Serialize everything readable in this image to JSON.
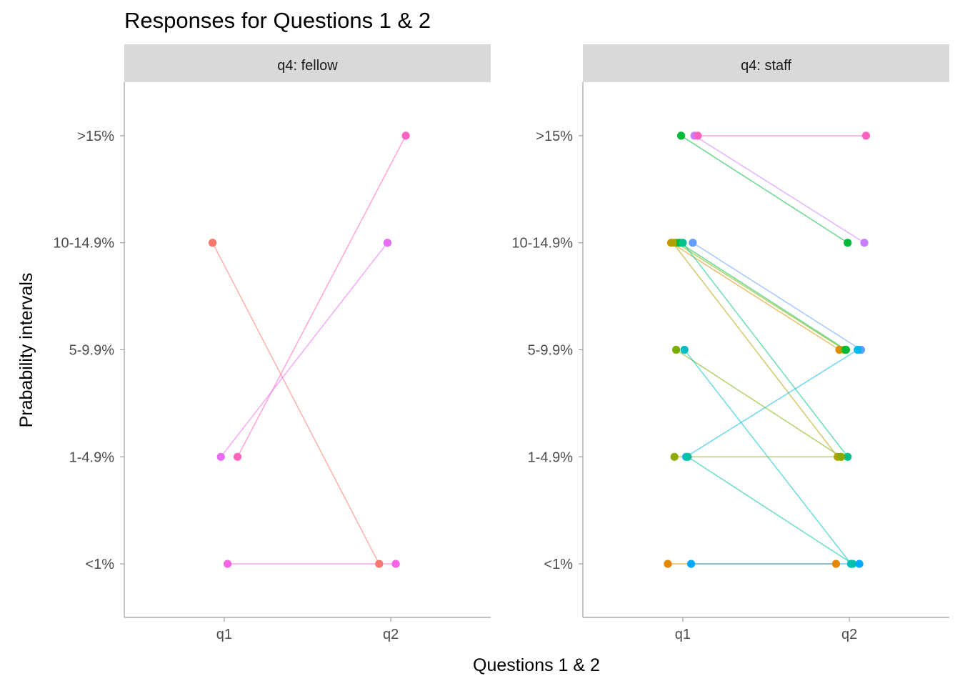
{
  "chart_data": {
    "type": "line",
    "title": "Responses for Questions 1 & 2",
    "xlabel": "Questions 1 & 2",
    "ylabel": "Prabability intervals",
    "x_categories": [
      "q1",
      "q2"
    ],
    "y_categories": [
      "<1%",
      "1-4.9%",
      "5-9.9%",
      "10-14.9%",
      ">15%"
    ],
    "grid": false,
    "legend": "none",
    "facet_label": "q4",
    "panels": [
      {
        "name": "q4: fellow",
        "series": [
          {
            "color": "#F8766D",
            "x": [
              0.93,
              1.93
            ],
            "values": [
              "10-14.9%",
              "<1%"
            ]
          },
          {
            "color": "#FF62BC",
            "x": [
              1.08,
              2.09
            ],
            "values": [
              "1-4.9%",
              ">15%"
            ]
          },
          {
            "color": "#E76BF3",
            "x": [
              0.98,
              1.98
            ],
            "values": [
              "1-4.9%",
              "10-14.9%"
            ]
          },
          {
            "color": "#F564E3",
            "x": [
              1.02,
              2.03
            ],
            "values": [
              "<1%",
              "<1%"
            ]
          }
        ]
      },
      {
        "name": "q4: staff",
        "series": [
          {
            "color": "#00BA38",
            "x": [
              0.99,
              1.99
            ],
            "values": [
              ">15%",
              "10-14.9%"
            ]
          },
          {
            "color": "#C77CFF",
            "x": [
              1.07,
              2.09
            ],
            "values": [
              ">15%",
              "10-14.9%"
            ]
          },
          {
            "color": "#FF61C3",
            "x": [
              1.09,
              2.1
            ],
            "values": [
              ">15%",
              ">15%"
            ]
          },
          {
            "color": "#DE8C00",
            "x": [
              0.93,
              1.94
            ],
            "values": [
              "10-14.9%",
              "5-9.9%"
            ]
          },
          {
            "color": "#7CAE00",
            "x": [
              0.96,
              1.97
            ],
            "values": [
              "10-14.9%",
              "5-9.9%"
            ]
          },
          {
            "color": "#00BA38",
            "x": [
              0.98,
              1.98
            ],
            "values": [
              "10-14.9%",
              "5-9.9%"
            ]
          },
          {
            "color": "#AEA200",
            "x": [
              0.94,
              1.93
            ],
            "values": [
              "10-14.9%",
              "1-4.9%"
            ]
          },
          {
            "color": "#00C08B",
            "x": [
              1.0,
              1.99
            ],
            "values": [
              "10-14.9%",
              "1-4.9%"
            ]
          },
          {
            "color": "#619CFF",
            "x": [
              1.06,
              2.07
            ],
            "values": [
              "10-14.9%",
              "5-9.9%"
            ]
          },
          {
            "color": "#7CAE00",
            "x": [
              0.96,
              1.95
            ],
            "values": [
              "5-9.9%",
              "1-4.9%"
            ]
          },
          {
            "color": "#00BFC4",
            "x": [
              1.01,
              2.01
            ],
            "values": [
              "5-9.9%",
              "<1%"
            ]
          },
          {
            "color": "#8CAB00",
            "x": [
              0.95,
              1.95
            ],
            "values": [
              "1-4.9%",
              "1-4.9%"
            ]
          },
          {
            "color": "#00B8E7",
            "x": [
              1.02,
              2.05
            ],
            "values": [
              "1-4.9%",
              "5-9.9%"
            ]
          },
          {
            "color": "#00C1A3",
            "x": [
              1.03,
              2.02
            ],
            "values": [
              "1-4.9%",
              "<1%"
            ]
          },
          {
            "color": "#E58700",
            "x": [
              0.91,
              1.92
            ],
            "values": [
              "<1%",
              "<1%"
            ]
          },
          {
            "color": "#00A9FF",
            "x": [
              1.05,
              2.06
            ],
            "values": [
              "<1%",
              "<1%"
            ]
          }
        ]
      }
    ]
  }
}
